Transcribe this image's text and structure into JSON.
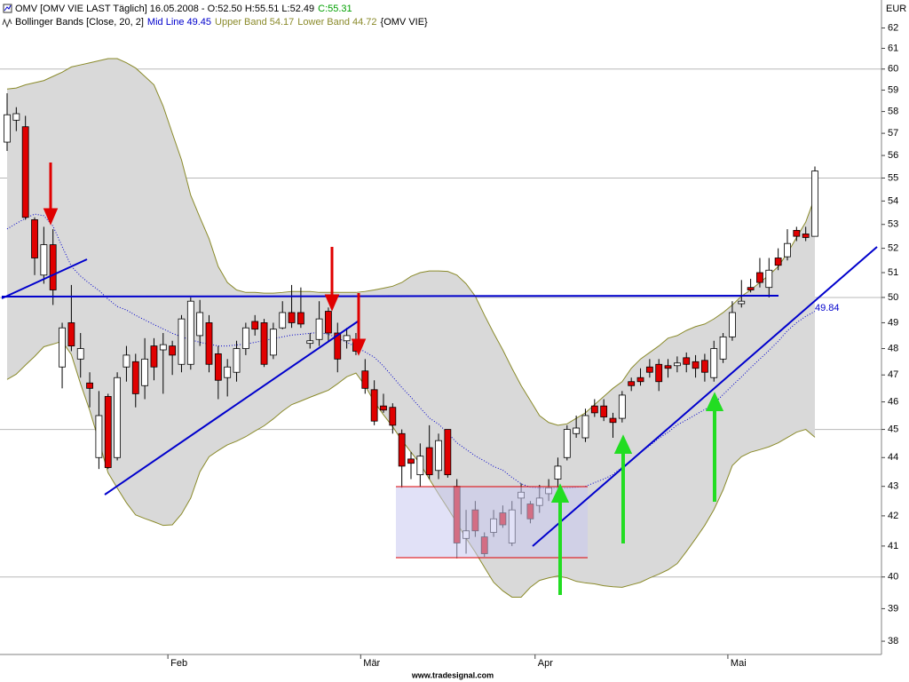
{
  "chart_data": {
    "type": "candlestick",
    "title": "OMV [OMV VIE LAST Täglich] 16.05.2008 - O:52.50 H:55.51 L:52.49",
    "title_close": "C:55.31",
    "indicator": "Bollinger Bands [Close, 20, 2]",
    "indicator_symbol": "{OMV VIE}",
    "y_unit": "EUR",
    "annotation": "49.84",
    "source": "www.tradesignal.com",
    "log_scale": true,
    "ylim": [
      37.6,
      63.4
    ],
    "yticks": [
      38,
      39,
      40,
      41,
      42,
      43,
      44,
      45,
      46,
      47,
      48,
      49,
      50,
      51,
      52,
      53,
      54,
      55,
      56,
      57,
      58,
      59,
      60,
      61,
      62
    ],
    "ygrid": [
      40,
      45,
      50,
      55,
      60
    ],
    "up_color": "#ffffff",
    "down_color": "#e00000",
    "close_color": "#00a000",
    "band_fill": "#d9d9d9",
    "categories": [
      null,
      null,
      null,
      null,
      null,
      null,
      null,
      null,
      null,
      null,
      null,
      null,
      null,
      null,
      null,
      null,
      null,
      null,
      "Feb",
      null,
      null,
      null,
      null,
      null,
      null,
      null,
      null,
      null,
      null,
      null,
      null,
      null,
      null,
      null,
      null,
      null,
      null,
      null,
      null,
      "Mär",
      null,
      null,
      null,
      null,
      null,
      null,
      null,
      null,
      null,
      null,
      null,
      null,
      null,
      null,
      null,
      null,
      null,
      null,
      "Apr",
      null,
      null,
      null,
      null,
      null,
      null,
      null,
      null,
      null,
      null,
      null,
      null,
      null,
      null,
      null,
      null,
      null,
      null,
      null,
      null,
      "Mai",
      null,
      null,
      null,
      null,
      null,
      null,
      null,
      null,
      null
    ],
    "open": [
      56.6,
      57.6,
      57.3,
      53.2,
      50.9,
      52.15,
      47.3,
      49.0,
      47.6,
      46.7,
      44.0,
      46.2,
      44.0,
      47.3,
      47.5,
      46.6,
      48.1,
      47.95,
      48.1,
      47.4,
      47.4,
      48.5,
      49.0,
      47.8,
      46.9,
      47.1,
      48.0,
      49.05,
      49.0,
      47.75,
      48.8,
      49.4,
      49.4,
      48.2,
      48.35,
      49.45,
      48.6,
      48.3,
      48.3,
      47.15,
      46.45,
      45.85,
      45.8,
      44.85,
      43.95,
      43.4,
      44.35,
      43.55,
      45.0,
      43.0,
      41.25,
      42.2,
      41.3,
      41.45,
      42.1,
      41.1,
      42.6,
      42.4,
      42.35,
      42.75,
      43.25,
      44.0,
      44.85,
      44.7,
      45.85,
      45.85,
      45.4,
      45.4,
      46.75,
      46.9,
      47.3,
      47.4,
      47.35,
      47.35,
      47.65,
      47.5,
      47.55,
      46.9,
      47.6,
      48.45,
      49.75,
      50.4,
      51.0,
      50.4,
      51.6,
      51.65,
      52.75,
      52.6,
      52.5
    ],
    "high": [
      58.85,
      58.2,
      57.8,
      53.3,
      52.9,
      52.8,
      49.0,
      50.5,
      48.6,
      47.1,
      46.4,
      46.3,
      47.1,
      48.1,
      47.8,
      48.4,
      48.4,
      48.6,
      48.3,
      49.3,
      50.0,
      49.9,
      49.3,
      48.1,
      47.6,
      48.3,
      49.0,
      49.3,
      49.15,
      49.0,
      49.85,
      50.5,
      50.4,
      48.6,
      49.85,
      49.6,
      49.0,
      48.8,
      48.6,
      47.6,
      46.8,
      46.3,
      45.95,
      45.0,
      44.2,
      44.5,
      45.15,
      44.85,
      45.0,
      43.25,
      42.2,
      42.5,
      41.45,
      42.2,
      42.35,
      42.5,
      43.1,
      42.5,
      43.05,
      43.25,
      44.0,
      45.15,
      45.5,
      45.75,
      46.1,
      46.1,
      45.6,
      46.4,
      46.9,
      47.25,
      47.6,
      47.6,
      47.6,
      47.7,
      47.85,
      47.75,
      47.8,
      48.3,
      48.6,
      49.85,
      50.7,
      50.75,
      51.6,
      51.6,
      52.0,
      52.8,
      52.9,
      52.9,
      55.51
    ],
    "low": [
      56.2,
      57.1,
      53.2,
      50.9,
      50.55,
      49.7,
      46.5,
      47.9,
      46.9,
      45.8,
      43.6,
      43.6,
      43.9,
      46.75,
      45.8,
      46.1,
      46.8,
      46.3,
      47.0,
      47.1,
      47.2,
      48.1,
      47.1,
      46.1,
      46.2,
      46.75,
      47.75,
      48.5,
      47.3,
      47.6,
      48.75,
      48.8,
      48.8,
      48.0,
      48.1,
      48.25,
      47.1,
      48.0,
      47.75,
      46.3,
      45.15,
      45.6,
      44.85,
      42.95,
      43.25,
      43.0,
      43.25,
      43.25,
      43.3,
      40.6,
      40.75,
      41.3,
      40.65,
      41.3,
      41.6,
      41.0,
      42.05,
      41.75,
      42.1,
      42.5,
      42.95,
      43.9,
      44.7,
      44.55,
      45.45,
      45.3,
      44.7,
      45.25,
      46.4,
      46.6,
      46.9,
      46.4,
      46.9,
      47.1,
      47.1,
      46.9,
      46.75,
      46.75,
      47.45,
      48.3,
      49.6,
      50.2,
      50.4,
      50.0,
      51.1,
      51.5,
      52.3,
      52.3,
      52.49
    ],
    "close": [
      57.85,
      57.9,
      53.3,
      51.6,
      52.15,
      50.3,
      48.8,
      48.1,
      48.0,
      46.5,
      45.5,
      43.65,
      46.9,
      47.75,
      46.3,
      47.6,
      47.3,
      48.15,
      47.75,
      49.15,
      49.85,
      49.4,
      47.4,
      46.8,
      47.3,
      48.0,
      48.8,
      48.75,
      47.4,
      48.75,
      49.4,
      49.0,
      48.95,
      48.3,
      49.15,
      48.6,
      47.6,
      48.5,
      47.9,
      46.5,
      45.3,
      45.7,
      45.15,
      43.7,
      43.8,
      44.05,
      43.4,
      44.6,
      43.4,
      41.1,
      41.5,
      41.5,
      40.75,
      41.9,
      41.7,
      42.2,
      42.8,
      41.9,
      42.6,
      42.95,
      43.7,
      45.0,
      45.05,
      45.5,
      45.6,
      45.45,
      45.25,
      46.25,
      46.6,
      46.75,
      47.1,
      46.75,
      47.25,
      47.45,
      47.4,
      47.25,
      47.1,
      48.0,
      48.45,
      49.4,
      49.85,
      50.3,
      50.6,
      51.1,
      51.3,
      52.2,
      52.5,
      52.45,
      55.31
    ],
    "series": [
      {
        "name": "Mid Line",
        "color": "#0000cc",
        "style": "dotted",
        "values": [
          52.81,
          53.04,
          53.26,
          53.44,
          53.37,
          52.93,
          52.07,
          51.26,
          50.86,
          50.55,
          50.28,
          49.93,
          49.64,
          49.5,
          49.29,
          49.11,
          48.93,
          48.76,
          48.59,
          48.45,
          48.34,
          48.24,
          48.17,
          48.1,
          48.1,
          48.14,
          48.17,
          48.24,
          48.31,
          48.38,
          48.45,
          48.52,
          48.55,
          48.59,
          48.62,
          48.55,
          48.41,
          48.24,
          48.07,
          47.87,
          47.67,
          47.33,
          46.93,
          46.53,
          46.17,
          45.78,
          45.41,
          45.19,
          44.87,
          44.52,
          44.29,
          44.06,
          43.88,
          43.69,
          43.56,
          43.31,
          43.09,
          42.97,
          42.94,
          42.94,
          42.94,
          42.94,
          42.97,
          43.0,
          43.13,
          43.25,
          43.41,
          43.66,
          43.88,
          44.19,
          44.42,
          44.68,
          44.9,
          45.16,
          45.34,
          45.53,
          45.72,
          45.94,
          46.27,
          46.6,
          46.93,
          47.27,
          47.6,
          47.93,
          48.28,
          48.69,
          49.0,
          49.25,
          49.45
        ]
      },
      {
        "name": "Upper Band",
        "color": "#8a8a2a",
        "style": "solid",
        "values": [
          59.05,
          59.1,
          59.25,
          59.35,
          59.45,
          59.65,
          59.85,
          60.1,
          60.2,
          60.3,
          60.4,
          60.5,
          60.5,
          60.3,
          60.05,
          59.65,
          59.25,
          58.25,
          57.0,
          55.8,
          54.25,
          53.3,
          52.4,
          51.25,
          50.6,
          50.3,
          50.2,
          50.2,
          50.17,
          50.17,
          50.2,
          50.24,
          50.24,
          50.24,
          50.2,
          50.2,
          50.2,
          50.2,
          50.2,
          50.24,
          50.3,
          50.37,
          50.45,
          50.6,
          50.85,
          51.0,
          51.07,
          51.07,
          51.05,
          50.9,
          50.55,
          50.05,
          49.3,
          48.6,
          47.95,
          47.25,
          46.6,
          46.05,
          45.5,
          45.25,
          45.15,
          45.2,
          45.4,
          45.6,
          45.9,
          46.2,
          46.5,
          46.75,
          47.25,
          47.6,
          47.85,
          48.1,
          48.4,
          48.5,
          48.7,
          48.85,
          48.95,
          49.15,
          49.4,
          49.7,
          50.05,
          50.3,
          50.6,
          50.9,
          51.25,
          51.8,
          52.45,
          53.1,
          54.17
        ]
      },
      {
        "name": "Lower Band",
        "color": "#8a8a2a",
        "style": "solid",
        "values": [
          46.83,
          47.03,
          47.37,
          47.7,
          48.07,
          48.17,
          48.28,
          47.77,
          46.67,
          45.69,
          44.58,
          43.47,
          42.94,
          42.44,
          42.03,
          41.91,
          41.8,
          41.68,
          41.7,
          42.06,
          42.6,
          43.5,
          44.03,
          44.25,
          44.45,
          44.58,
          44.74,
          44.94,
          45.13,
          45.38,
          45.66,
          45.9,
          46.03,
          46.17,
          46.3,
          46.43,
          46.67,
          46.93,
          47.07,
          46.6,
          46.0,
          45.53,
          45.1,
          44.61,
          44.19,
          43.78,
          43.25,
          42.74,
          42.26,
          41.76,
          41.26,
          40.8,
          40.31,
          39.83,
          39.56,
          39.36,
          39.36,
          39.67,
          39.89,
          39.97,
          40.03,
          39.97,
          39.86,
          39.81,
          39.78,
          39.72,
          39.69,
          39.67,
          39.75,
          39.83,
          39.97,
          40.09,
          40.23,
          40.43,
          40.82,
          41.24,
          41.68,
          42.21,
          42.88,
          43.72,
          44.03,
          44.19,
          44.28,
          44.38,
          44.52,
          44.71,
          44.9,
          45.0,
          44.72
        ]
      }
    ]
  }
}
